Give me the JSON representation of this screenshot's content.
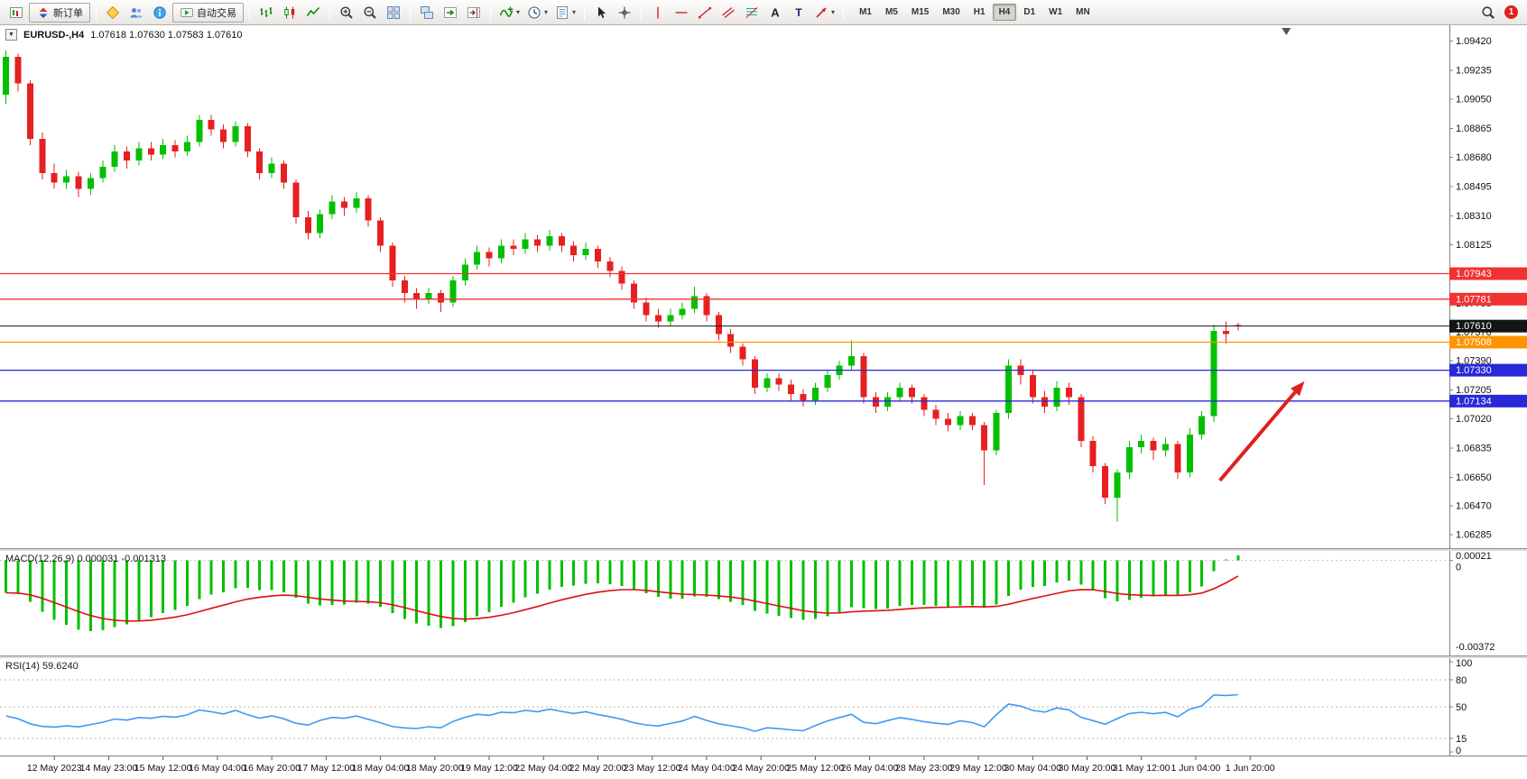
{
  "toolbar": {
    "new_order_label": "新订单",
    "autotrade_label": "自动交易",
    "notification_badge": "1",
    "timeframes": [
      "M1",
      "M5",
      "M15",
      "M30",
      "H1",
      "H4",
      "D1",
      "W1",
      "MN"
    ],
    "active_timeframe": "H4",
    "items": [
      {
        "type": "icon",
        "name": "new-chart-button",
        "icon": "chart-window"
      },
      {
        "type": "labeled",
        "name": "new-order-button",
        "icon": "new-order",
        "label": "新订单"
      },
      {
        "type": "sep"
      },
      {
        "type": "icon",
        "name": "market-button",
        "icon": "market"
      },
      {
        "type": "icon",
        "name": "community-button",
        "icon": "community"
      },
      {
        "type": "icon",
        "name": "info-button",
        "icon": "info"
      },
      {
        "type": "labeled",
        "name": "autotrade-button",
        "icon": "autotrade",
        "label": "自动交易"
      },
      {
        "type": "sep"
      },
      {
        "type": "icon",
        "name": "bar-chart-button",
        "icon": "bars-chart"
      },
      {
        "type": "icon",
        "name": "candlestick-chart-button",
        "icon": "candle-chart"
      },
      {
        "type": "icon",
        "name": "line-chart-button",
        "icon": "line-chart"
      },
      {
        "type": "sep"
      },
      {
        "type": "icon",
        "name": "zoom-in-button",
        "icon": "zoom-in"
      },
      {
        "type": "icon",
        "name": "zoom-out-button",
        "icon": "zoom-out"
      },
      {
        "type": "icon",
        "name": "tile-windows-button",
        "icon": "tile-windows"
      },
      {
        "type": "sep"
      },
      {
        "type": "icon",
        "name": "cascade-windows-button",
        "icon": "cascade-windows"
      },
      {
        "type": "icon",
        "name": "auto-scroll-button",
        "icon": "auto-scroll"
      },
      {
        "type": "icon",
        "name": "chart-shift-button",
        "icon": "chart-shift"
      },
      {
        "type": "sep"
      },
      {
        "type": "icon",
        "name": "indicators-button",
        "icon": "indicators",
        "caret": true
      },
      {
        "type": "icon",
        "name": "periods-button",
        "icon": "periods",
        "caret": true
      },
      {
        "type": "icon",
        "name": "templates-button",
        "icon": "templates",
        "caret": true
      },
      {
        "type": "sep"
      },
      {
        "type": "icon",
        "name": "cursor-button",
        "icon": "cursor"
      },
      {
        "type": "icon",
        "name": "crosshair-button",
        "icon": "crosshair"
      },
      {
        "type": "sep"
      },
      {
        "type": "icon",
        "name": "vertical-line-button",
        "icon": "vline"
      },
      {
        "type": "icon",
        "name": "horizontal-line-button",
        "icon": "hline"
      },
      {
        "type": "icon",
        "name": "trendline-button",
        "icon": "trendline"
      },
      {
        "type": "icon",
        "name": "channel-button",
        "icon": "channel"
      },
      {
        "type": "icon",
        "name": "fibonacci-button",
        "icon": "fibonacci"
      },
      {
        "type": "icon",
        "name": "text-button",
        "icon": "text-tool"
      },
      {
        "type": "icon",
        "name": "label-button",
        "icon": "label-tool"
      },
      {
        "type": "icon",
        "name": "arrows-button",
        "icon": "arrows-tool",
        "caret": true
      },
      {
        "type": "sep"
      }
    ]
  },
  "chart": {
    "title": "EURUSD-,H4",
    "ohlc_text": "1.07618 1.07630 1.07583 1.07610",
    "up_color": "#00c000",
    "down_color": "#e62020",
    "price_min": 1.062,
    "price_max": 1.0952,
    "slots": 120,
    "shift_marker_slot": 106,
    "axis_labels": [
      "1.09420",
      "1.09235",
      "1.09050",
      "1.08865",
      "1.08680",
      "1.08495",
      "1.08310",
      "1.08125",
      "1.07940",
      "1.07755",
      "1.07570",
      "1.07390",
      "1.07205",
      "1.07020",
      "1.06835",
      "1.06650",
      "1.06470",
      "1.06285"
    ],
    "hlines": [
      {
        "name": "resistance-line-1",
        "label": "1.07943",
        "price": 1.07943,
        "color": "#f03232",
        "width": 1.3
      },
      {
        "name": "resistance-line-2",
        "label": "1.07781",
        "price": 1.07781,
        "color": "#f03232",
        "width": 1.3
      },
      {
        "name": "current-price-line",
        "label": "1.07610",
        "price": 1.0761,
        "color": "#141414",
        "width": 1
      },
      {
        "name": "pivot-line",
        "label": "1.07508",
        "price": 1.07508,
        "color": "#ff9400",
        "width": 1.3
      },
      {
        "name": "support-line-1",
        "label": "1.07330",
        "price": 1.0733,
        "color": "#2929d8",
        "width": 1.3
      },
      {
        "name": "support-line-2",
        "label": "1.07134",
        "price": 1.07134,
        "color": "#2929d8",
        "width": 1.3
      }
    ],
    "arrow": {
      "x1_slot": 100.5,
      "price1": 1.0663,
      "x2_slot": 107.5,
      "price2": 1.0726,
      "color": "#e02020"
    },
    "candles": [
      [
        1.0908,
        1.0936,
        1.0902,
        1.0932
      ],
      [
        1.0932,
        1.0934,
        1.091,
        1.0915
      ],
      [
        1.0915,
        1.0917,
        1.0876,
        1.088
      ],
      [
        1.088,
        1.0884,
        1.0854,
        1.0858
      ],
      [
        1.0858,
        1.0864,
        1.0848,
        1.0852
      ],
      [
        1.0852,
        1.086,
        1.0848,
        1.0856
      ],
      [
        1.0856,
        1.0859,
        1.0843,
        1.0848
      ],
      [
        1.0848,
        1.0858,
        1.0844,
        1.0855
      ],
      [
        1.0855,
        1.0866,
        1.0852,
        1.0862
      ],
      [
        1.0862,
        1.0876,
        1.0859,
        1.0872
      ],
      [
        1.0872,
        1.0875,
        1.0861,
        1.0866
      ],
      [
        1.0866,
        1.0878,
        1.0863,
        1.0874
      ],
      [
        1.0874,
        1.0878,
        1.0866,
        1.087
      ],
      [
        1.087,
        1.088,
        1.0867,
        1.0876
      ],
      [
        1.0876,
        1.0879,
        1.0868,
        1.0872
      ],
      [
        1.0872,
        1.0882,
        1.0869,
        1.0878
      ],
      [
        1.0878,
        1.0895,
        1.0875,
        1.0892
      ],
      [
        1.0892,
        1.0895,
        1.0882,
        1.0886
      ],
      [
        1.0886,
        1.0889,
        1.0874,
        1.0878
      ],
      [
        1.0878,
        1.0891,
        1.0875,
        1.0888
      ],
      [
        1.0888,
        1.089,
        1.0868,
        1.0872
      ],
      [
        1.0872,
        1.0874,
        1.0854,
        1.0858
      ],
      [
        1.0858,
        1.0868,
        1.0855,
        1.0864
      ],
      [
        1.0864,
        1.0866,
        1.0848,
        1.0852
      ],
      [
        1.0852,
        1.0854,
        1.0826,
        1.083
      ],
      [
        1.083,
        1.0834,
        1.0816,
        1.082
      ],
      [
        1.082,
        1.0835,
        1.0817,
        1.0832
      ],
      [
        1.0832,
        1.0844,
        1.0829,
        1.084
      ],
      [
        1.084,
        1.0843,
        1.0831,
        1.0836
      ],
      [
        1.0836,
        1.0846,
        1.0833,
        1.0842
      ],
      [
        1.0842,
        1.0844,
        1.0824,
        1.0828
      ],
      [
        1.0828,
        1.083,
        1.0808,
        1.0812
      ],
      [
        1.0812,
        1.0814,
        1.0786,
        1.079
      ],
      [
        1.079,
        1.0793,
        1.0776,
        1.0782
      ],
      [
        1.0782,
        1.0785,
        1.0772,
        1.0778
      ],
      [
        1.0778,
        1.0785,
        1.0775,
        1.0782
      ],
      [
        1.0782,
        1.0784,
        1.077,
        1.0776
      ],
      [
        1.0776,
        1.0793,
        1.0773,
        1.079
      ],
      [
        1.079,
        1.0804,
        1.0787,
        1.08
      ],
      [
        1.08,
        1.0812,
        1.0797,
        1.0808
      ],
      [
        1.0808,
        1.0811,
        1.0799,
        1.0804
      ],
      [
        1.0804,
        1.0816,
        1.0801,
        1.0812
      ],
      [
        1.0812,
        1.0816,
        1.0806,
        1.081
      ],
      [
        1.081,
        1.082,
        1.0807,
        1.0816
      ],
      [
        1.0816,
        1.0819,
        1.0808,
        1.0812
      ],
      [
        1.0812,
        1.0822,
        1.0809,
        1.0818
      ],
      [
        1.0818,
        1.082,
        1.0808,
        1.0812
      ],
      [
        1.0812,
        1.0815,
        1.0802,
        1.0806
      ],
      [
        1.0806,
        1.0814,
        1.0803,
        1.081
      ],
      [
        1.081,
        1.0812,
        1.0798,
        1.0802
      ],
      [
        1.0802,
        1.0805,
        1.0792,
        1.0796
      ],
      [
        1.0796,
        1.0799,
        1.0784,
        1.0788
      ],
      [
        1.0788,
        1.079,
        1.0772,
        1.0776
      ],
      [
        1.0776,
        1.0779,
        1.0764,
        1.0768
      ],
      [
        1.0768,
        1.0772,
        1.076,
        1.0764
      ],
      [
        1.0764,
        1.0772,
        1.0761,
        1.0768
      ],
      [
        1.0768,
        1.0776,
        1.0765,
        1.0772
      ],
      [
        1.0772,
        1.0786,
        1.0769,
        1.078
      ],
      [
        1.078,
        1.0782,
        1.0764,
        1.0768
      ],
      [
        1.0768,
        1.077,
        1.0752,
        1.0756
      ],
      [
        1.0756,
        1.0759,
        1.0744,
        1.0748
      ],
      [
        1.0748,
        1.075,
        1.0736,
        1.074
      ],
      [
        1.074,
        1.0742,
        1.0718,
        1.0722
      ],
      [
        1.0722,
        1.0731,
        1.0719,
        1.0728
      ],
      [
        1.0728,
        1.0731,
        1.072,
        1.0724
      ],
      [
        1.0724,
        1.0727,
        1.0714,
        1.0718
      ],
      [
        1.0718,
        1.0721,
        1.071,
        1.0714
      ],
      [
        1.0714,
        1.0725,
        1.0711,
        1.0722
      ],
      [
        1.0722,
        1.0733,
        1.0719,
        1.073
      ],
      [
        1.073,
        1.0739,
        1.0727,
        1.0736
      ],
      [
        1.0736,
        1.0752,
        1.0733,
        1.0742
      ],
      [
        1.0742,
        1.0744,
        1.0712,
        1.0716
      ],
      [
        1.0716,
        1.0719,
        1.0706,
        1.071
      ],
      [
        1.071,
        1.0719,
        1.0707,
        1.0716
      ],
      [
        1.0716,
        1.0725,
        1.0713,
        1.0722
      ],
      [
        1.0722,
        1.0724,
        1.0712,
        1.0716
      ],
      [
        1.0716,
        1.0718,
        1.0704,
        1.0708
      ],
      [
        1.0708,
        1.0711,
        1.0698,
        1.0702
      ],
      [
        1.0702,
        1.0706,
        1.0694,
        1.0698
      ],
      [
        1.0698,
        1.0707,
        1.0695,
        1.0704
      ],
      [
        1.0704,
        1.0706,
        1.0695,
        1.0698
      ],
      [
        1.0698,
        1.07,
        1.066,
        1.0682
      ],
      [
        1.0682,
        1.0708,
        1.0679,
        1.0706
      ],
      [
        1.0706,
        1.074,
        1.0702,
        1.0736
      ],
      [
        1.0736,
        1.074,
        1.0724,
        1.073
      ],
      [
        1.073,
        1.0733,
        1.0712,
        1.0716
      ],
      [
        1.0716,
        1.072,
        1.0706,
        1.071
      ],
      [
        1.071,
        1.0726,
        1.0707,
        1.0722
      ],
      [
        1.0722,
        1.0725,
        1.0711,
        1.0716
      ],
      [
        1.0716,
        1.0718,
        1.0684,
        1.0688
      ],
      [
        1.0688,
        1.0691,
        1.0668,
        1.0672
      ],
      [
        1.0672,
        1.0674,
        1.0648,
        1.0652
      ],
      [
        1.0652,
        1.067,
        1.0637,
        1.0668
      ],
      [
        1.0668,
        1.0688,
        1.0664,
        1.0684
      ],
      [
        1.0684,
        1.0692,
        1.068,
        1.0688
      ],
      [
        1.0688,
        1.069,
        1.0676,
        1.0682
      ],
      [
        1.0682,
        1.069,
        1.0678,
        1.0686
      ],
      [
        1.0686,
        1.0688,
        1.0664,
        1.0668
      ],
      [
        1.0668,
        1.0696,
        1.0665,
        1.0692
      ],
      [
        1.0692,
        1.0707,
        1.0689,
        1.0704
      ],
      [
        1.0704,
        1.0762,
        1.07,
        1.0758
      ],
      [
        1.0758,
        1.0764,
        1.075,
        1.0756
      ],
      [
        1.07618,
        1.0763,
        1.07583,
        1.0761
      ]
    ]
  },
  "macd": {
    "label": "MACD(12,26,9) 0.000031 -0.001313",
    "params": [
      12,
      26,
      9
    ],
    "value_main": "0.000031",
    "value_signal": "-0.001313",
    "axis_max": 0.00021,
    "axis_min": -0.00372,
    "axis_max_label": "0.00021",
    "axis_zero_label": "0",
    "axis_min_label": "-0.00372",
    "bar_color": "#00c000",
    "signal_color": "#dd1111"
  },
  "rsi": {
    "label": "RSI(14) 59.6240",
    "period": 14,
    "value": "59.6240",
    "line_color": "#3d99f5",
    "levels": [
      80,
      50,
      15
    ],
    "axis_labels": [
      "100",
      "80",
      "50",
      "15",
      "0"
    ],
    "axis_values": [
      100,
      80,
      50,
      15,
      0
    ]
  },
  "time_axis": {
    "first_slot": 4,
    "slot_step": 4.5,
    "labels": [
      "12 May 2023",
      "14 May 23:00",
      "15 May 12:00",
      "16 May 04:00",
      "16 May 20:00",
      "17 May 12:00",
      "18 May 04:00",
      "18 May 20:00",
      "19 May 12:00",
      "22 May 04:00",
      "22 May 20:00",
      "23 May 12:00",
      "24 May 04:00",
      "24 May 20:00",
      "25 May 12:00",
      "26 May 04:00",
      "28 May 23:00",
      "29 May 12:00",
      "30 May 04:00",
      "30 May 20:00",
      "31 May 12:00",
      "1 Jun 04:00",
      "1 Jun 20:00"
    ]
  }
}
